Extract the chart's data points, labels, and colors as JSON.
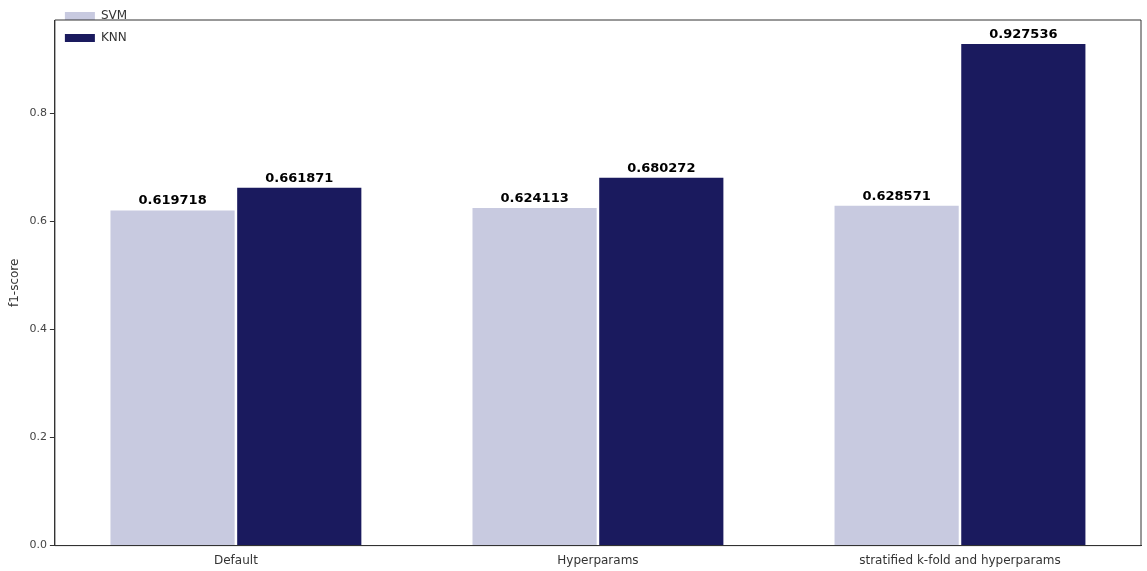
{
  "chart_data": {
    "type": "bar",
    "ylabel": "f1-score",
    "categories": [
      "Default",
      "Hyperparams",
      "stratified k-fold and hyperparams"
    ],
    "series": [
      {
        "name": "SVM",
        "color": "#c8cae0",
        "values": [
          0.619718,
          0.624113,
          0.628571
        ]
      },
      {
        "name": "KNN",
        "color": "#1a1a5e",
        "values": [
          0.661871,
          0.680272,
          0.927536
        ]
      }
    ],
    "ylim": [
      0,
      0.972
    ],
    "yticks": [
      {
        "value": 0,
        "label": "0.0"
      },
      {
        "value": 0.2,
        "label": "0.2"
      },
      {
        "value": 0.4,
        "label": "0.4"
      },
      {
        "value": 0.6,
        "label": "0.6"
      },
      {
        "value": 0.8,
        "label": "0.8"
      }
    ],
    "data_labels": true,
    "legend": "top left",
    "grid": false
  }
}
